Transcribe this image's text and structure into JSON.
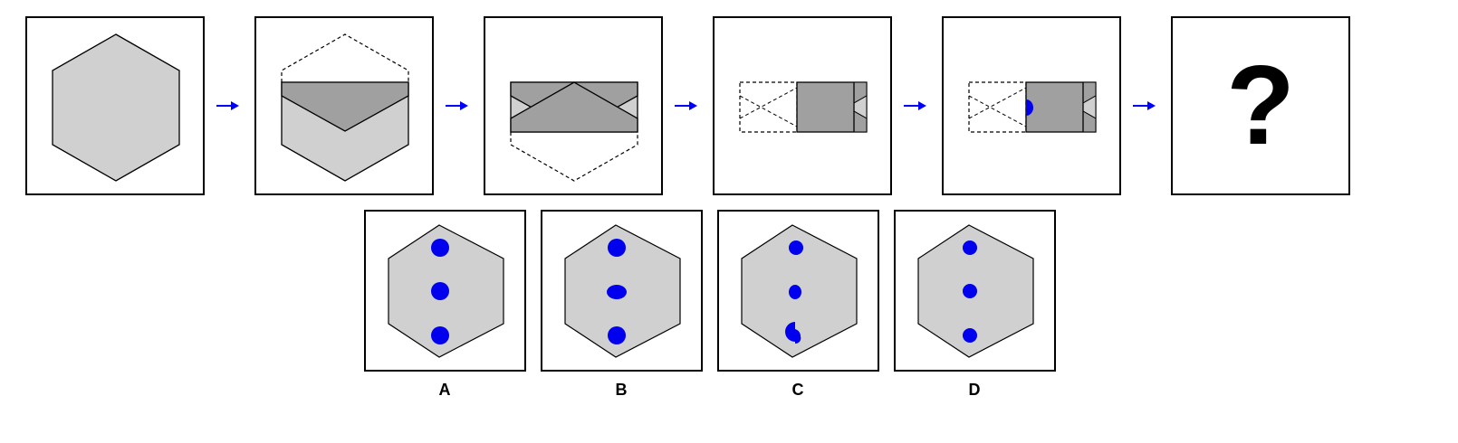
{
  "question_mark": "?",
  "options": [
    {
      "label": "A"
    },
    {
      "label": "B"
    },
    {
      "label": "C"
    },
    {
      "label": "D"
    }
  ],
  "colors": {
    "light_gray": "#d0d0d0",
    "dark_gray": "#a0a0a0",
    "dot_blue": "#0000ee",
    "arrow_blue": "#0000ff",
    "outline": "#000000"
  }
}
